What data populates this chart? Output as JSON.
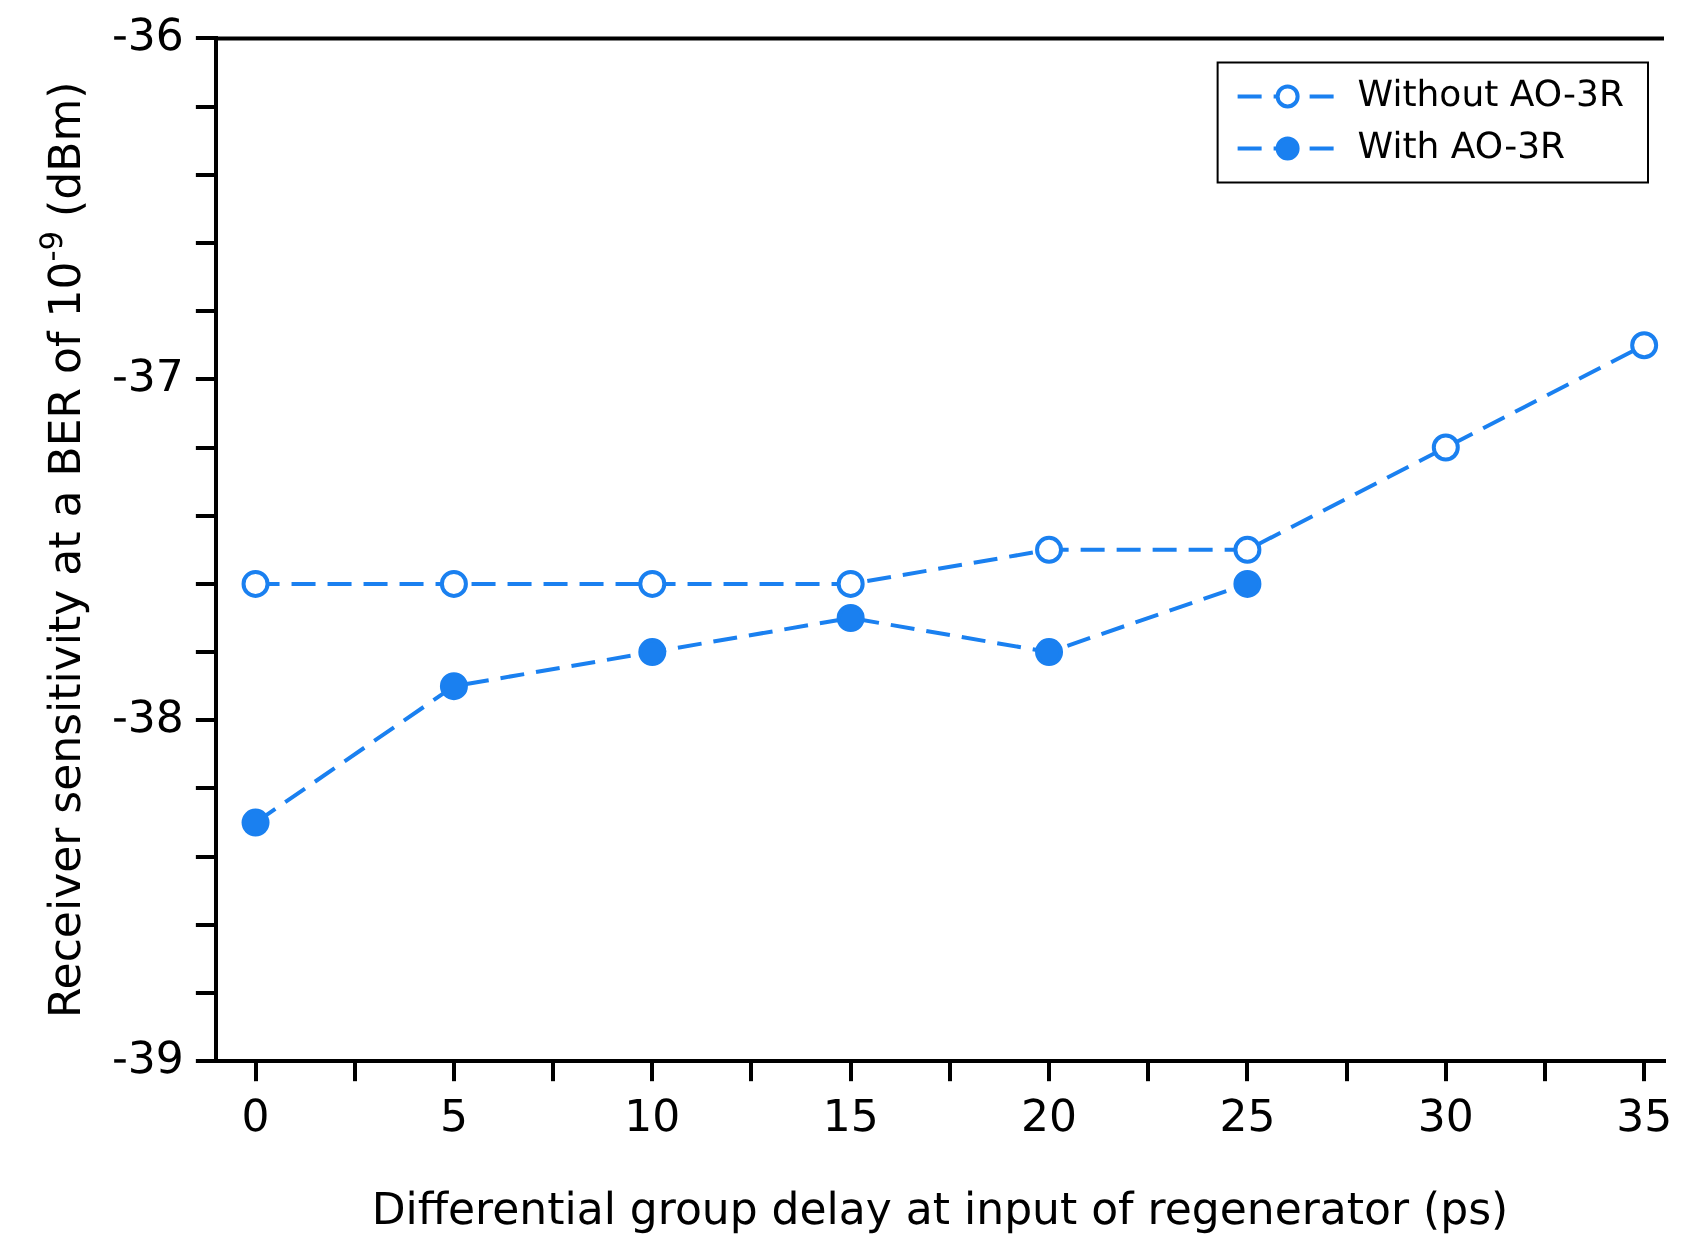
{
  "chart_data": {
    "type": "line",
    "xlabel": "Differential group delay at input of regenerator (ps)",
    "ylabel": "Receiver sensitivity at a BER of 10$^{-9}$ (dBm)",
    "x": [
      0,
      5,
      10,
      15,
      20,
      25,
      30,
      35
    ],
    "series": [
      {
        "name": "Without AO-3R",
        "color": "#1a80f0",
        "values": [
          -37.6,
          -37.6,
          -37.6,
          -37.6,
          -37.5,
          -37.5,
          -37.2,
          -36.9
        ]
      },
      {
        "name": "With AO-3R",
        "color": "#1a80f0",
        "values": [
          -38.3,
          -37.9,
          -37.8,
          -37.7,
          -37.8,
          -37.6,
          null,
          null
        ]
      }
    ],
    "xlim": [
      -1,
      35.5
    ],
    "xticks": [
      0,
      {
        "value": 2.5,
        "label": null
      },
      5,
      {
        "value": 7.5,
        "label": null
      },
      10,
      {
        "value": 12.5,
        "label": null
      },
      15,
      {
        "value": 17.5,
        "label": null
      },
      20,
      {
        "value": 22.5,
        "label": null
      },
      25,
      {
        "value": 27.5,
        "label": null
      },
      30,
      {
        "value": 32.5,
        "label": null
      },
      35
    ],
    "ylim": [
      -39,
      -36
    ],
    "yticks": [
      -39,
      {
        "value": -38.8,
        "label": null
      },
      {
        "value": -38.6,
        "label": null
      },
      {
        "value": -38.4,
        "label": null
      },
      {
        "value": -38.2,
        "label": null
      },
      -38,
      {
        "value": -37.8,
        "label": null
      },
      {
        "value": -37.6,
        "label": null
      },
      {
        "value": -37.4,
        "label": null
      },
      {
        "value": -37.2,
        "label": null
      },
      -37,
      {
        "value": -36.8,
        "label": null
      },
      {
        "value": -36.6,
        "label": null
      },
      {
        "value": -36.4,
        "label": null
      },
      {
        "value": -36.2,
        "label": null
      },
      -36
    ],
    "grid": false,
    "legend": "top right",
    "marker": "circle",
    "line_style": "dashed"
  }
}
